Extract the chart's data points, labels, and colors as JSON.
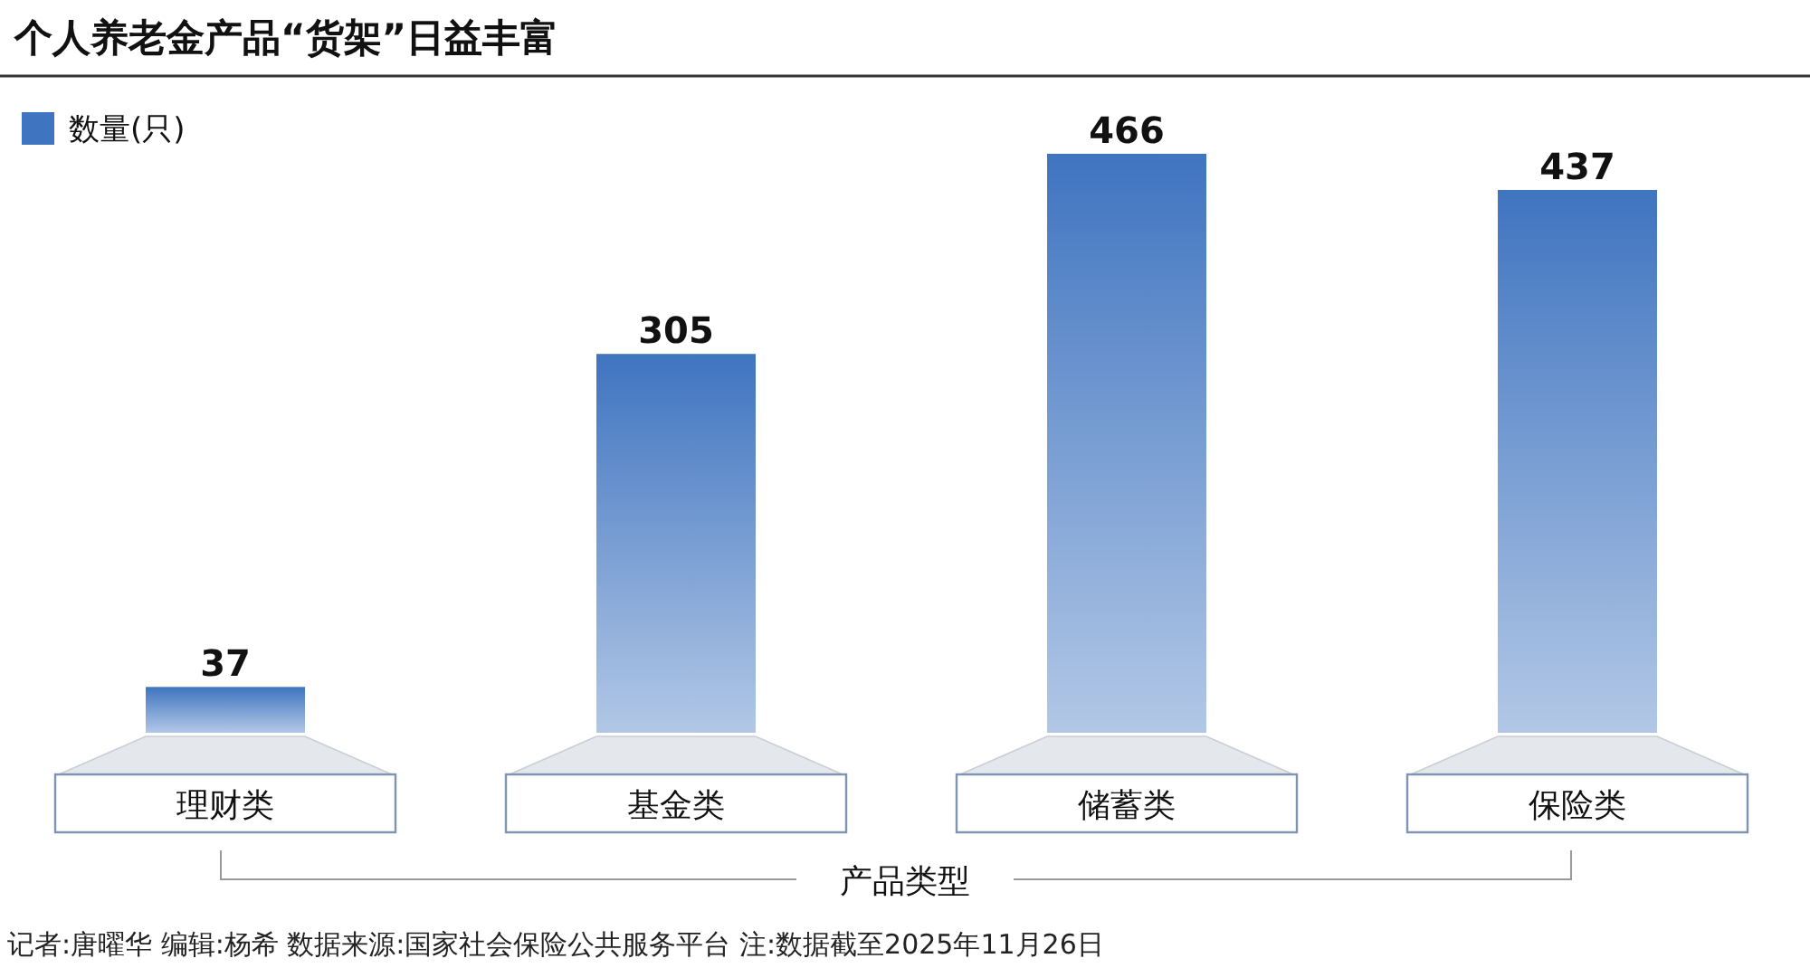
{
  "chart_data": {
    "type": "bar",
    "title": "个人养老金产品“货架”日益丰富",
    "xlabel": "产品类型",
    "categories": [
      "理财类",
      "基金类",
      "储蓄类",
      "保险类"
    ],
    "series": [
      {
        "name": "数量(只)",
        "color": "#3f74c0",
        "values": [
          37,
          305,
          466,
          437
        ]
      }
    ],
    "data_labels": true,
    "legend": "top left",
    "annotations": [
      "记者:唐曜华  编辑:杨希  数据来源:国家社会保险公共服务平台  注:数据截至2025年11月26日"
    ]
  }
}
